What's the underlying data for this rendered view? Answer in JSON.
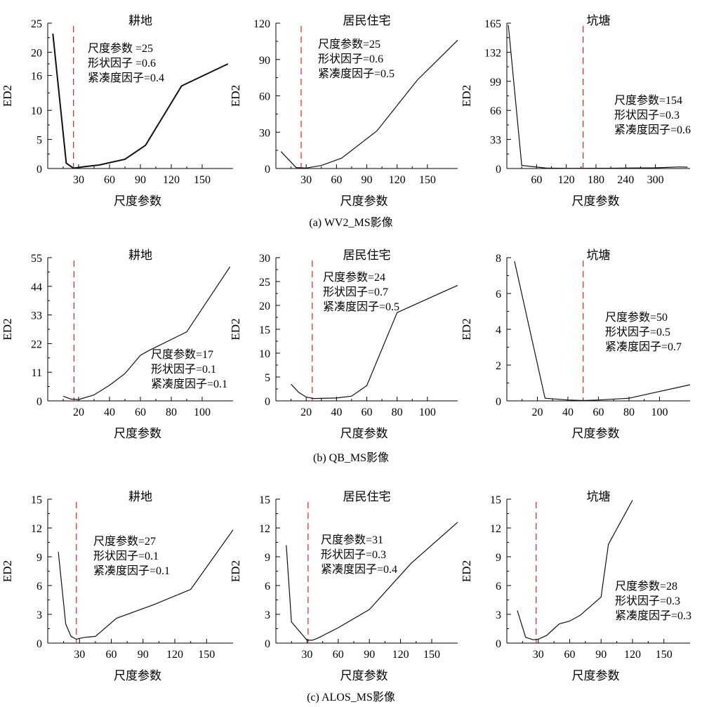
{
  "chart_data": [
    {
      "type": "line",
      "row_caption": "(a) WV2_MS影像",
      "title": "耕地",
      "xlabel": "尺度参数",
      "ylabel": "ED2",
      "xlim": [
        0,
        180
      ],
      "ylim": [
        0,
        25
      ],
      "xticks": [
        30,
        60,
        90,
        120,
        150
      ],
      "yticks": [
        0,
        5,
        10,
        16,
        20,
        25
      ],
      "ytick_labels": [
        "0",
        "5",
        "10",
        "16",
        "20",
        "25"
      ],
      "optimal_scale": 25,
      "annotation": [
        "尺度参数 =25",
        "形状因子 =0.6",
        "紧凑度因子=0.4"
      ],
      "series": [
        {
          "x": [
            5,
            18,
            25,
            35,
            50,
            75,
            95,
            130,
            175
          ],
          "y": [
            23.2,
            0.9,
            0.05,
            0.3,
            0.6,
            1.6,
            4.0,
            14.2,
            18.0
          ]
        }
      ]
    },
    {
      "type": "line",
      "row_caption": "(a) WV2_MS影像",
      "title": "居民住宅",
      "xlabel": "尺度参数",
      "ylabel": "ED2",
      "xlim": [
        0,
        180
      ],
      "ylim": [
        0,
        120
      ],
      "xticks": [
        30,
        60,
        90,
        120,
        150
      ],
      "yticks": [
        0,
        30,
        60,
        90,
        120
      ],
      "ytick_labels": [
        "0",
        "30",
        "60",
        "90",
        "120"
      ],
      "optimal_scale": 25,
      "annotation": [
        "尺度参数=25",
        "形状因子=0.6",
        "紧凑度因子=0.5"
      ],
      "series": [
        {
          "x": [
            5,
            20,
            30,
            45,
            65,
            100,
            140,
            180
          ],
          "y": [
            14,
            0.8,
            0.4,
            2.5,
            8.5,
            31,
            73,
            106
          ]
        }
      ]
    },
    {
      "type": "line",
      "row_caption": "(a) WV2_MS影像",
      "title": "坑塘",
      "xlabel": "尺度参数",
      "ylabel": "ED2",
      "xlim": [
        0,
        370
      ],
      "ylim": [
        0,
        165
      ],
      "xticks": [
        60,
        120,
        180,
        240,
        300
      ],
      "yticks": [
        0,
        33,
        66,
        99,
        132,
        165
      ],
      "ytick_labels": [
        "0",
        "33",
        "66",
        "99",
        "132",
        "165"
      ],
      "optimal_scale": 154,
      "annotation": [
        "尺度参数=154",
        "形状因子=0.3",
        "紧凑度因子=0.6"
      ],
      "series": [
        {
          "x": [
            3,
            30,
            80,
            120,
            200,
            300,
            350,
            365
          ],
          "y": [
            163,
            3.5,
            0.5,
            0.2,
            0.3,
            0.8,
            1.8,
            1.5
          ]
        }
      ]
    },
    {
      "type": "line",
      "row_caption": "(b) QB_MS影像",
      "title": "耕地",
      "xlabel": "尺度参数",
      "ylabel": "ED2",
      "xlim": [
        0,
        120
      ],
      "ylim": [
        0,
        55
      ],
      "xticks": [
        20,
        40,
        60,
        80,
        100
      ],
      "yticks": [
        0,
        11,
        22,
        33,
        44,
        55
      ],
      "ytick_labels": [
        "0",
        "11",
        "22",
        "33",
        "44",
        "55"
      ],
      "optimal_scale": 17,
      "annotation": [
        "尺度参数=17",
        "形状因子=0.1",
        "紧凑度因子=0.1"
      ],
      "series": [
        {
          "x": [
            10,
            15,
            20,
            30,
            40,
            50,
            60,
            65,
            90,
            118
          ],
          "y": [
            1.8,
            0.7,
            0.5,
            2.3,
            6.0,
            10.5,
            17.5,
            19.2,
            26.5,
            51.5
          ]
        }
      ]
    },
    {
      "type": "line",
      "row_caption": "(b) QB_MS影像",
      "title": "居民住宅",
      "xlabel": "尺度参数",
      "ylabel": "ED2",
      "xlim": [
        0,
        120
      ],
      "ylim": [
        0,
        30
      ],
      "xticks": [
        20,
        40,
        60,
        80,
        100
      ],
      "yticks": [
        0,
        5,
        10,
        15,
        20,
        25,
        30
      ],
      "ytick_labels": [
        "0",
        "5",
        "10",
        "15",
        "20",
        "25",
        "30"
      ],
      "optimal_scale": 24,
      "annotation": [
        "尺度参数=24",
        "形状因子=0.7",
        "紧凑度因子=0.5"
      ],
      "series": [
        {
          "x": [
            10,
            15,
            20,
            25,
            40,
            50,
            60,
            80,
            120
          ],
          "y": [
            3.5,
            1.8,
            0.8,
            0.5,
            0.6,
            1.0,
            3.2,
            18.5,
            24.2
          ]
        }
      ]
    },
    {
      "type": "line",
      "row_caption": "(b) QB_MS影像",
      "title": "坑塘",
      "xlabel": "尺度参数",
      "ylabel": "ED2",
      "xlim": [
        0,
        120
      ],
      "ylim": [
        0,
        8
      ],
      "xticks": [
        20,
        40,
        60,
        80,
        100
      ],
      "yticks": [
        0,
        2,
        4,
        6,
        8
      ],
      "ytick_labels": [
        "0",
        "2",
        "4",
        "6",
        "8"
      ],
      "optimal_scale": 50,
      "annotation": [
        "尺度参数=50",
        "形状因子=0.5",
        "紧凑度因子=0.7"
      ],
      "series": [
        {
          "x": [
            5,
            25,
            40,
            50,
            60,
            80,
            120
          ],
          "y": [
            7.8,
            0.15,
            0.05,
            0.02,
            0.05,
            0.15,
            0.9
          ]
        }
      ]
    },
    {
      "type": "line",
      "row_caption": "(c) ALOS_MS影像",
      "title": "耕地",
      "xlabel": "尺度参数",
      "ylabel": "ED2",
      "xlim": [
        0,
        175
      ],
      "ylim": [
        0,
        15
      ],
      "xticks": [
        30,
        60,
        90,
        120,
        150
      ],
      "yticks": [
        0,
        3,
        6,
        9,
        12,
        15
      ],
      "ytick_labels": [
        "0",
        "3",
        "6",
        "9",
        "12",
        "15"
      ],
      "optimal_scale": 27,
      "annotation": [
        "尺度参数=27",
        "形状因子=0.1",
        "紧凑度因子=0.1"
      ],
      "series": [
        {
          "x": [
            10,
            17,
            22,
            27,
            30,
            35,
            45,
            65,
            100,
            135,
            175
          ],
          "y": [
            9.5,
            2.0,
            0.7,
            0.4,
            0.5,
            0.6,
            0.7,
            2.6,
            4.0,
            5.6,
            11.8
          ]
        }
      ]
    },
    {
      "type": "line",
      "row_caption": "(c) ALOS_MS影像",
      "title": "居民住宅",
      "xlabel": "尺度参数",
      "ylabel": "ED2",
      "xlim": [
        0,
        175
      ],
      "ylim": [
        0,
        15
      ],
      "xticks": [
        30,
        60,
        90,
        120,
        150
      ],
      "yticks": [
        0,
        3,
        6,
        9,
        12,
        15
      ],
      "ytick_labels": [
        "0",
        "3",
        "6",
        "9",
        "12",
        "15"
      ],
      "optimal_scale": 31,
      "annotation": [
        "尺度参数=31",
        "形状因子=0.3",
        "紧凑度因子=0.4"
      ],
      "series": [
        {
          "x": [
            10,
            15,
            30,
            35,
            40,
            60,
            90,
            130,
            175
          ],
          "y": [
            10.2,
            2.2,
            0.3,
            0.3,
            0.5,
            1.6,
            3.5,
            8.3,
            12.6
          ]
        }
      ]
    },
    {
      "type": "line",
      "row_caption": "(c) ALOS_MS影像",
      "title": "坑塘",
      "xlabel": "尺度参数",
      "ylabel": "ED2",
      "xlim": [
        0,
        175
      ],
      "ylim": [
        0,
        15
      ],
      "xticks": [
        30,
        60,
        90,
        120,
        150
      ],
      "yticks": [
        0,
        3,
        6,
        9,
        12,
        15
      ],
      "ytick_labels": [
        "0",
        "3",
        "6",
        "9",
        "12",
        "15"
      ],
      "optimal_scale": 28,
      "annotation": [
        "尺度参数=28",
        "形状因子=0.3",
        "紧凑度因子=0.3"
      ],
      "series": [
        {
          "x": [
            10,
            18,
            25,
            30,
            38,
            45,
            50,
            60,
            70,
            90,
            97,
            120
          ],
          "y": [
            3.4,
            0.6,
            0.35,
            0.4,
            0.8,
            1.5,
            2.0,
            2.3,
            2.9,
            4.8,
            10.3,
            14.9
          ]
        }
      ]
    }
  ]
}
